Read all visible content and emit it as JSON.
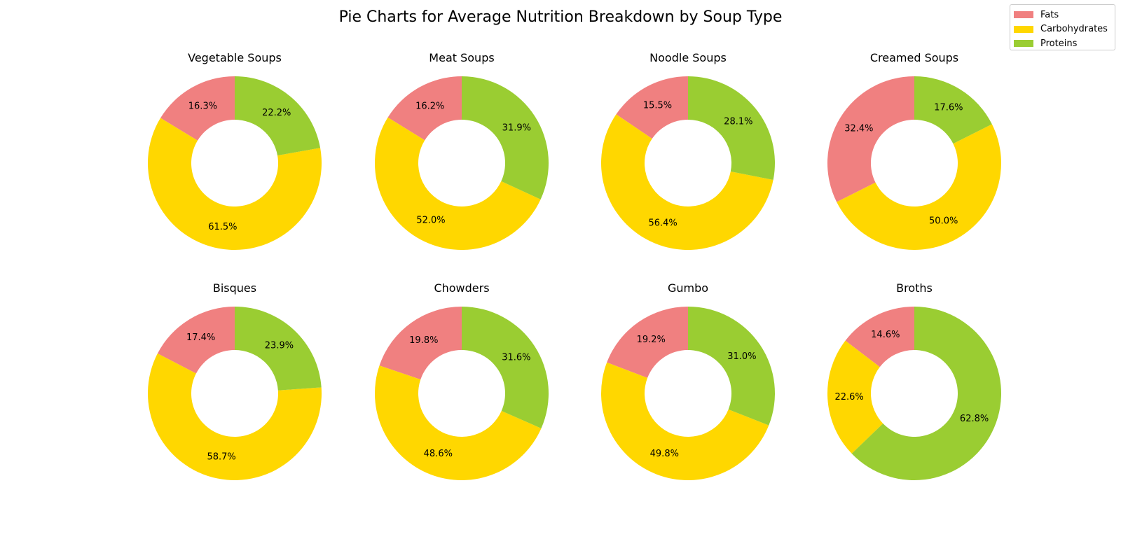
{
  "chart_data": {
    "type": "pie",
    "variant": "donut",
    "title": "Pie Charts for Average Nutrition Breakdown by Soup Type",
    "legend": {
      "placement": "top-right",
      "entries": [
        {
          "name": "Fats",
          "color": "#f08080"
        },
        {
          "name": "Carbohydrates",
          "color": "#ffd700"
        },
        {
          "name": "Proteins",
          "color": "#9acd32"
        }
      ]
    },
    "layout": {
      "rows": 2,
      "cols": 4
    },
    "categories": [
      "Fats",
      "Carbohydrates",
      "Proteins"
    ],
    "colors": [
      "#f08080",
      "#ffd700",
      "#9acd32"
    ],
    "start_angle_deg": 90,
    "direction": "counterclockwise",
    "charts": [
      {
        "title": "Vegetable Soups",
        "values": [
          16.3,
          61.5,
          22.2
        ],
        "labels": [
          "16.3%",
          "61.5%",
          "22.2%"
        ]
      },
      {
        "title": "Meat Soups",
        "values": [
          16.2,
          52.0,
          31.9
        ],
        "labels": [
          "16.2%",
          "52.0%",
          "31.9%"
        ]
      },
      {
        "title": "Noodle Soups",
        "values": [
          15.5,
          56.4,
          28.1
        ],
        "labels": [
          "15.5%",
          "56.4%",
          "28.1%"
        ]
      },
      {
        "title": "Creamed Soups",
        "values": [
          32.4,
          50.0,
          17.6
        ],
        "labels": [
          "32.4%",
          "50.0%",
          "17.6%"
        ]
      },
      {
        "title": "Bisques",
        "values": [
          17.4,
          58.7,
          23.9
        ],
        "labels": [
          "17.4%",
          "58.7%",
          "23.9%"
        ]
      },
      {
        "title": "Chowders",
        "values": [
          19.8,
          48.6,
          31.6
        ],
        "labels": [
          "19.8%",
          "48.6%",
          "31.6%"
        ]
      },
      {
        "title": "Gumbo",
        "values": [
          19.2,
          49.8,
          31.0
        ],
        "labels": [
          "19.2%",
          "49.8%",
          "31.0%"
        ]
      },
      {
        "title": "Broths",
        "values": [
          14.6,
          22.6,
          62.8
        ],
        "labels": [
          "14.6%",
          "22.6%",
          "62.8%"
        ]
      }
    ]
  }
}
